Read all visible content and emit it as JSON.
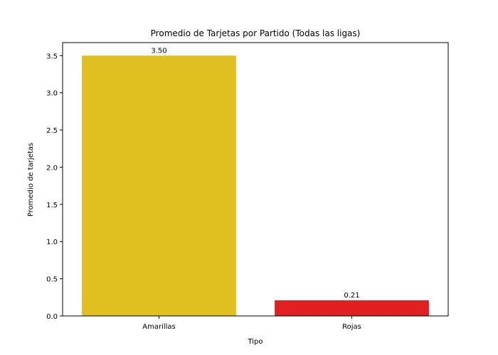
{
  "chart_data": {
    "type": "bar",
    "title": "Promedio de Tarjetas por Partido (Todas las ligas)",
    "xlabel": "Tipo",
    "ylabel": "Promedio de tarjetas",
    "categories": [
      "Amarillas",
      "Rojas"
    ],
    "values": [
      3.5,
      0.21
    ],
    "value_labels": [
      "3.50",
      "0.21"
    ],
    "colors": [
      "#e0c020",
      "#e02020"
    ],
    "ylim": [
      0,
      3.675
    ],
    "yticks": [
      0.0,
      0.5,
      1.0,
      1.5,
      2.0,
      2.5,
      3.0,
      3.5
    ],
    "ytick_labels": [
      "0.0",
      "0.5",
      "1.0",
      "1.5",
      "2.0",
      "2.5",
      "3.0",
      "3.5"
    ],
    "grid": false,
    "legend": "none"
  }
}
